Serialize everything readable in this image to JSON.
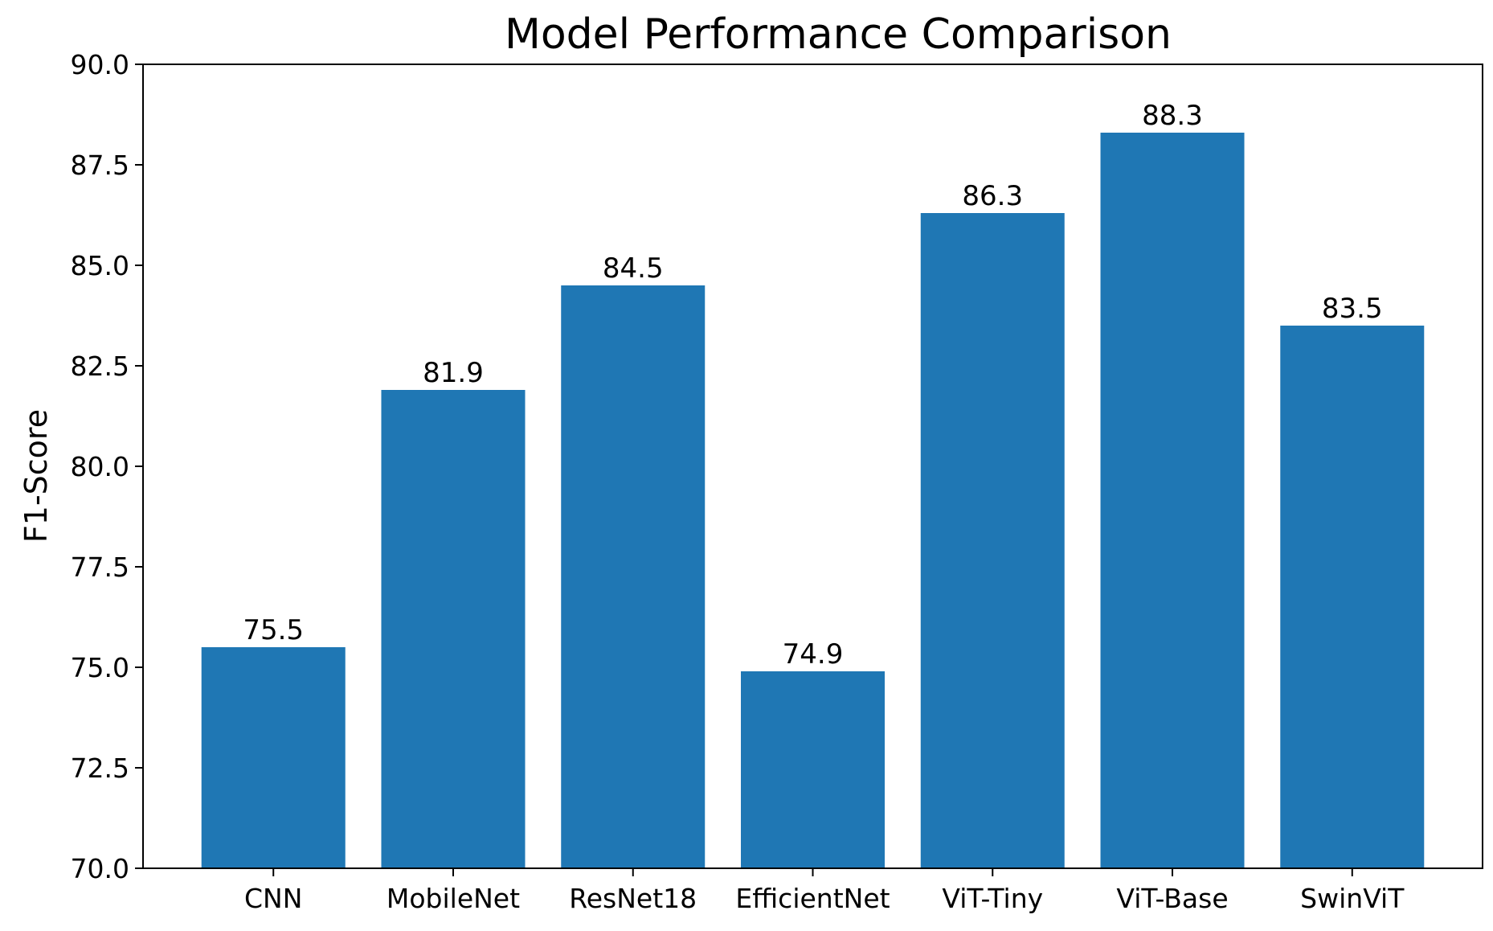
{
  "chart_data": {
    "type": "bar",
    "title": "Model Performance Comparison",
    "xlabel": "",
    "ylabel": "F1-Score",
    "categories": [
      "CNN",
      "MobileNet",
      "ResNet18",
      "EfficientNet",
      "ViT-Tiny",
      "ViT-Base",
      "SwinViT"
    ],
    "values": [
      75.5,
      81.9,
      84.5,
      74.9,
      86.3,
      88.3,
      83.5
    ],
    "data_labels": [
      "75.5",
      "81.9",
      "84.5",
      "74.9",
      "86.3",
      "88.3",
      "83.5"
    ],
    "ylim": [
      70.0,
      90.0
    ],
    "yticks": [
      70.0,
      72.5,
      75.0,
      77.5,
      80.0,
      82.5,
      85.0,
      87.5,
      90.0
    ],
    "ytick_labels": [
      "70.0",
      "72.5",
      "75.0",
      "77.5",
      "80.0",
      "82.5",
      "85.0",
      "87.5",
      "90.0"
    ],
    "bar_color": "#1f77b4",
    "grid": false,
    "legend": "none"
  }
}
